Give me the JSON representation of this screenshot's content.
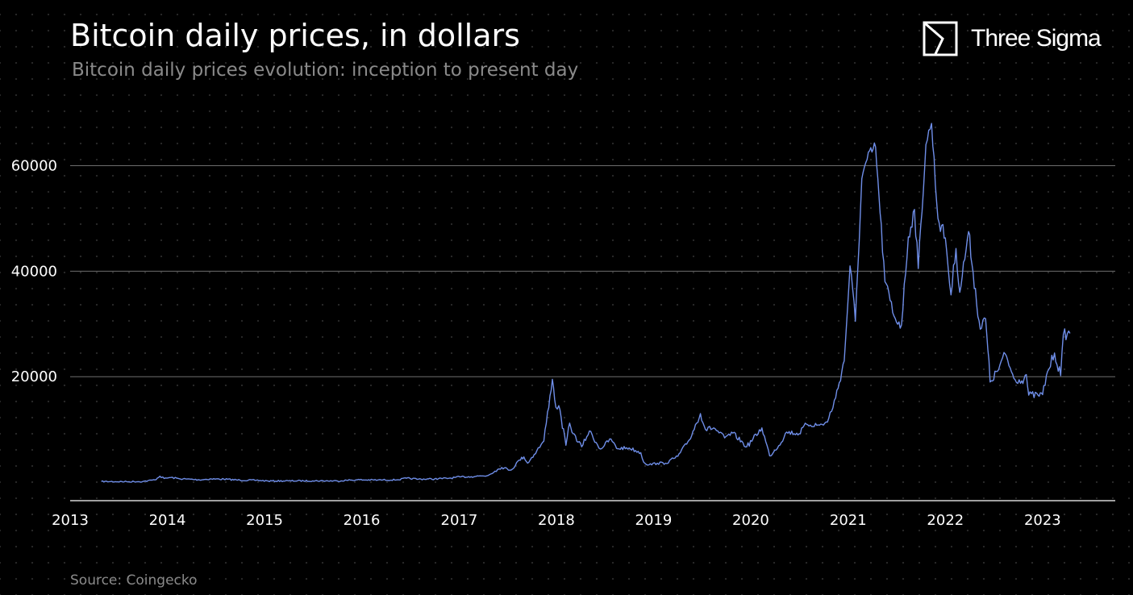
{
  "header": {
    "title": "Bitcoin daily prices, in dollars",
    "subtitle": "Bitcoin daily prices evolution: inception to present day"
  },
  "brand": {
    "name": "Three Sigma",
    "icon": "three-sigma-logo-icon"
  },
  "footer": {
    "source": "Source: Coingecko"
  },
  "colors": {
    "background": "#000000",
    "line": "#6f8ee8",
    "grid": "#6e6e6e",
    "text": "#ffffff",
    "muted": "#8a8a8a"
  },
  "chart_data": {
    "type": "line",
    "title": "Bitcoin daily prices, in dollars",
    "subtitle": "Bitcoin daily prices evolution: inception to present day",
    "xlabel": "",
    "ylabel": "",
    "x_ticks": [
      "2013",
      "2014",
      "2015",
      "2016",
      "2017",
      "2018",
      "2019",
      "2020",
      "2021",
      "2022",
      "2023"
    ],
    "y_ticks": [
      20000,
      40000,
      60000
    ],
    "xlim": [
      "2013-01-01",
      "2023-10-01"
    ],
    "ylim": [
      -3500,
      70000
    ],
    "grid": "horizontal",
    "series": [
      {
        "x": [
          "2013-04-28",
          "2013-06-01",
          "2013-08-01",
          "2013-10-01",
          "2013-11-15",
          "2013-12-04",
          "2013-12-20",
          "2014-01-15",
          "2014-02-15",
          "2014-03-15",
          "2014-05-01",
          "2014-06-15",
          "2014-08-01",
          "2014-10-01",
          "2014-12-01",
          "2015-01-15",
          "2015-04-01",
          "2015-07-01",
          "2015-10-01",
          "2015-11-05",
          "2015-12-15",
          "2016-03-01",
          "2016-05-15",
          "2016-06-17",
          "2016-08-01",
          "2016-10-01",
          "2016-12-01",
          "2017-01-04",
          "2017-02-15",
          "2017-03-15",
          "2017-04-15",
          "2017-05-15",
          "2017-06-10",
          "2017-07-15",
          "2017-08-15",
          "2017-09-01",
          "2017-09-15",
          "2017-10-20",
          "2017-11-15",
          "2017-12-08",
          "2017-12-17",
          "2017-12-30",
          "2018-01-10",
          "2018-02-06",
          "2018-02-20",
          "2018-03-05",
          "2018-04-06",
          "2018-05-05",
          "2018-06-15",
          "2018-07-25",
          "2018-08-15",
          "2018-10-01",
          "2018-11-14",
          "2018-11-25",
          "2018-12-15",
          "2019-01-15",
          "2019-02-15",
          "2019-04-02",
          "2019-05-15",
          "2019-06-26",
          "2019-07-15",
          "2019-08-15",
          "2019-09-25",
          "2019-10-26",
          "2019-12-17",
          "2020-02-12",
          "2020-03-12",
          "2020-04-15",
          "2020-05-15",
          "2020-07-01",
          "2020-07-28",
          "2020-09-15",
          "2020-10-15",
          "2020-11-15",
          "2020-12-17",
          "2021-01-08",
          "2021-01-28",
          "2021-02-21",
          "2021-03-13",
          "2021-04-14",
          "2021-05-01",
          "2021-05-19",
          "2021-06-22",
          "2021-07-20",
          "2021-08-15",
          "2021-09-07",
          "2021-09-21",
          "2021-10-20",
          "2021-11-10",
          "2021-12-04",
          "2022-01-01",
          "2022-01-22",
          "2022-02-10",
          "2022-02-24",
          "2022-03-29",
          "2022-04-15",
          "2022-05-12",
          "2022-06-01",
          "2022-06-18",
          "2022-07-15",
          "2022-08-14",
          "2022-09-15",
          "2022-10-15",
          "2022-11-01",
          "2022-11-10",
          "2022-12-15",
          "2023-01-01",
          "2023-01-20",
          "2023-02-15",
          "2023-03-10",
          "2023-03-20",
          "2023-04-14"
        ],
        "y": [
          135,
          120,
          100,
          130,
          450,
          1150,
          700,
          900,
          650,
          600,
          450,
          620,
          580,
          380,
          370,
          220,
          250,
          260,
          240,
          360,
          450,
          410,
          460,
          750,
          580,
          620,
          780,
          1000,
          1050,
          1180,
          1200,
          2100,
          2800,
          2300,
          4200,
          4800,
          3600,
          6000,
          7800,
          16400,
          19500,
          14200,
          14500,
          7000,
          11200,
          9200,
          6700,
          9700,
          6300,
          8200,
          6400,
          6500,
          5600,
          3800,
          3300,
          3600,
          3600,
          4900,
          8000,
          13000,
          10000,
          10300,
          8400,
          9300,
          6700,
          10300,
          5000,
          6900,
          9500,
          9200,
          11000,
          10800,
          11400,
          16000,
          23000,
          41000,
          30500,
          57500,
          61200,
          63500,
          51000,
          38000,
          31500,
          29800,
          46500,
          51700,
          40500,
          64000,
          68000,
          50000,
          46300,
          35500,
          44300,
          36000,
          47500,
          39800,
          29000,
          31000,
          19000,
          21000,
          24300,
          19700,
          19200,
          20400,
          16500,
          16500,
          16600,
          21000,
          24500,
          20200,
          28000,
          28200
        ],
        "style": "line"
      }
    ]
  }
}
